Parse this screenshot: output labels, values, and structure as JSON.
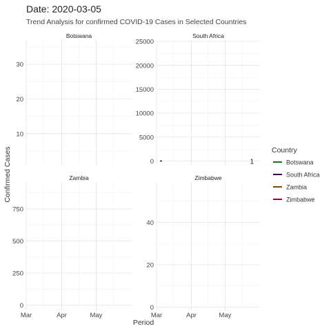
{
  "chart_data": {
    "type": "line",
    "title": "Date: 2020-03-05",
    "subtitle": "Trend Analysis for confirmed COVID-19 Cases in Selected Countries",
    "xlabel": "Period",
    "ylabel": "Confirmed Cases",
    "x_ticks": [
      "Mar",
      "Apr",
      "May"
    ],
    "grid": true,
    "legend": {
      "title": "Country",
      "position": "right",
      "entries": [
        {
          "name": "Botswana",
          "color": "#1f6b1f"
        },
        {
          "name": "South Africa",
          "color": "#3a0050"
        },
        {
          "name": "Zambia",
          "color": "#7a4a00"
        },
        {
          "name": "Zimbabwe",
          "color": "#9a0030"
        }
      ]
    },
    "panels": [
      {
        "name": "Botswana",
        "ylim": [
          1,
          37
        ],
        "yticks": [
          10,
          20,
          30
        ],
        "series": []
      },
      {
        "name": "South Africa",
        "ylim": [
          -800,
          25300
        ],
        "yticks": [
          0,
          5000,
          10000,
          15000,
          20000,
          25000
        ],
        "series": [
          {
            "name": "South Africa",
            "color": "#3a0050",
            "points": [
              {
                "x": "2020-03-05",
                "y": 1
              }
            ],
            "label": "1"
          }
        ]
      },
      {
        "name": "Zambia",
        "ylim": [
          -40,
          960
        ],
        "yticks": [
          0,
          250,
          500,
          750
        ],
        "series": []
      },
      {
        "name": "Zimbabwe",
        "ylim": [
          -1.5,
          59
        ],
        "yticks": [
          0,
          20,
          40
        ],
        "series": []
      }
    ]
  }
}
